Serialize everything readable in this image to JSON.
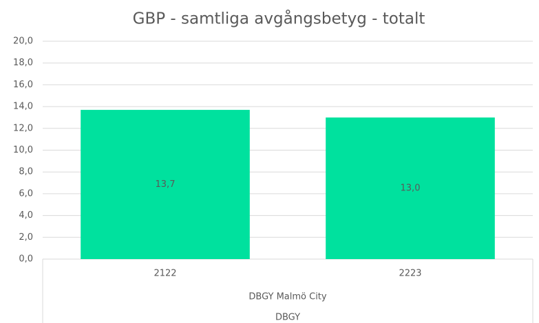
{
  "chart_data": {
    "type": "bar",
    "title": "GBP - samtliga avgångsbetyg - totalt",
    "categories": [
      "2122",
      "2223"
    ],
    "category_groups": [
      "DBGY Malmö City",
      "DBGY"
    ],
    "values": [
      13.7,
      13.0
    ],
    "value_labels": [
      "13,7",
      "13,0"
    ],
    "color": "#00e19e",
    "ylim": [
      0,
      20
    ],
    "yticks": [
      {
        "value": 0,
        "label": "0,0"
      },
      {
        "value": 2,
        "label": "2,0"
      },
      {
        "value": 4,
        "label": "4,0"
      },
      {
        "value": 6,
        "label": "6,0"
      },
      {
        "value": 8,
        "label": "8,0"
      },
      {
        "value": 10,
        "label": "10,0"
      },
      {
        "value": 12,
        "label": "12,0"
      },
      {
        "value": 14,
        "label": "14,0"
      },
      {
        "value": 16,
        "label": "16,0"
      },
      {
        "value": 18,
        "label": "18,0"
      },
      {
        "value": 20,
        "label": "20,0"
      }
    ],
    "grid": true
  }
}
